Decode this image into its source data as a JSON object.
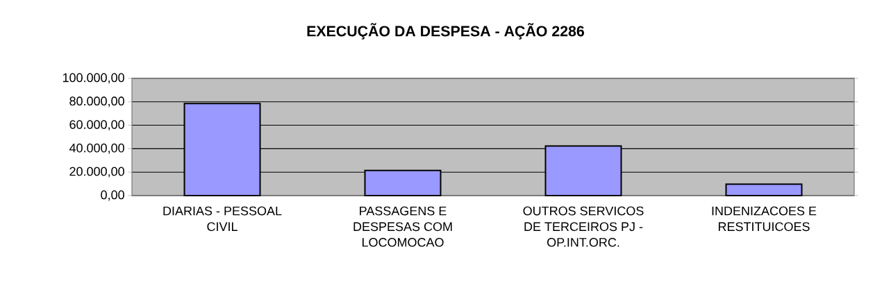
{
  "chart_data": {
    "type": "bar",
    "title": "EXECUÇÃO DA DESPESA - AÇÃO 2286",
    "categories": [
      "DIARIAS - PESSOAL CIVIL",
      "PASSAGENS E DESPESAS COM LOCOMOCAO",
      "OUTROS SERVICOS DE TERCEIROS PJ - OP.INT.ORC.",
      "INDENIZACOES E RESTITUICOES"
    ],
    "values": [
      78500,
      21500,
      42300,
      9800
    ],
    "color": "#9999ff",
    "ylim": [
      0,
      100000
    ],
    "yticks": [
      {
        "value": 0,
        "label": "0,00"
      },
      {
        "value": 20000,
        "label": "20.000,00"
      },
      {
        "value": 40000,
        "label": "40.000,00"
      },
      {
        "value": 60000,
        "label": "60.000,00"
      },
      {
        "value": 80000,
        "label": "80.000,00"
      },
      {
        "value": 100000,
        "label": "100.000,00"
      }
    ],
    "grid": "y"
  }
}
